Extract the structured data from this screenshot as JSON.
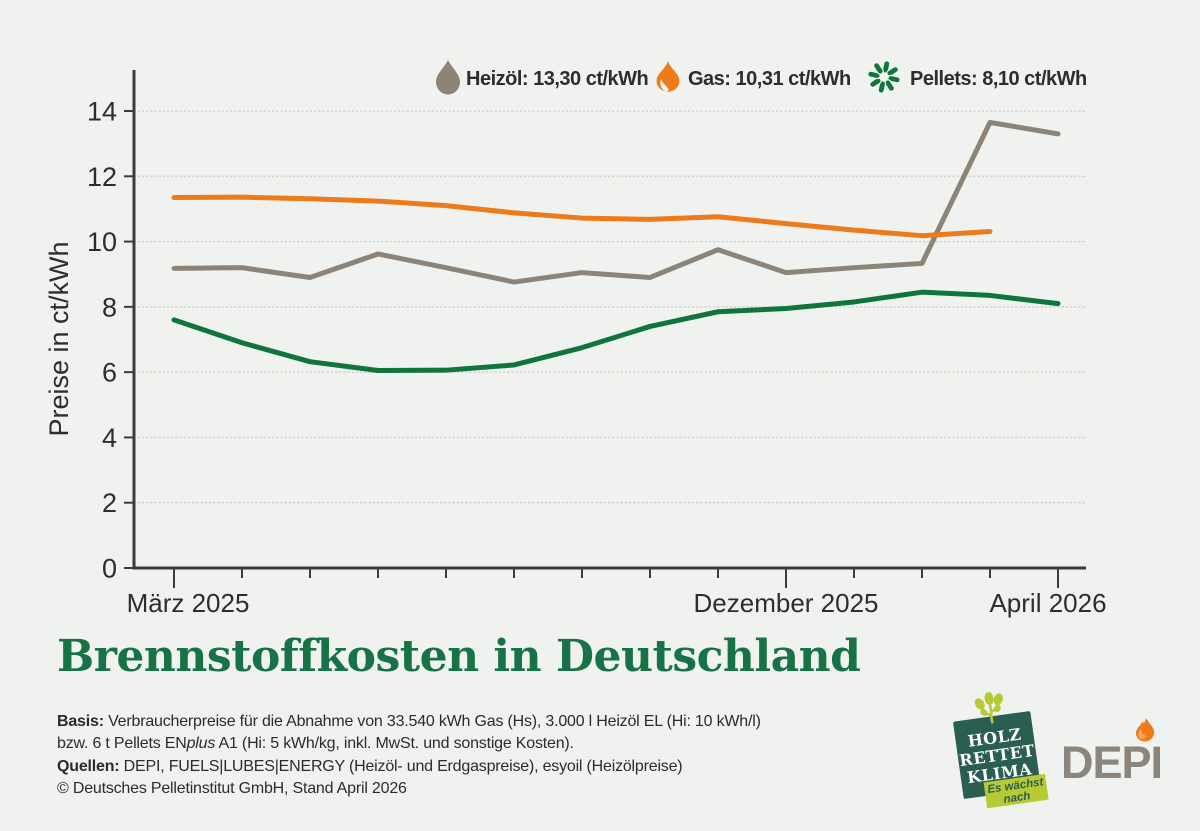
{
  "bg_color": "#f0f2ef",
  "title": {
    "text": "Brennstoffkosten in Deutschland",
    "color": "#177347"
  },
  "chart_data": {
    "type": "line",
    "ylabel": "Preise in ct/kWh",
    "ylim": [
      0,
      14
    ],
    "y_ticks": [
      0,
      2,
      4,
      6,
      8,
      10,
      12,
      14
    ],
    "grid": "dotted-horizontal",
    "legend_position": "top",
    "x_tick_count": 14,
    "x_tick_labels": [
      {
        "index": 0,
        "label": "März 2025",
        "dx": 14
      },
      {
        "index": 9,
        "label": "Dezember 2025",
        "dx": 0
      },
      {
        "index": 13,
        "label": "April 2026",
        "dx": -10
      }
    ],
    "axis_color": "#3b3b3a",
    "grid_color": "#d2d4cf",
    "tick_text_color": "#2e2d2c",
    "series": [
      {
        "name": "Heizöl",
        "icon": "droplet-icon",
        "color": "#8d8478",
        "legend_label": "Heizöl: 13,30 ct/kWh",
        "values": [
          9.18,
          9.2,
          8.9,
          9.62,
          9.2,
          8.76,
          9.05,
          8.9,
          9.75,
          9.05,
          9.2,
          9.33,
          13.65,
          13.3
        ]
      },
      {
        "name": "Gas",
        "icon": "flame-icon",
        "color": "#ed7b1b",
        "legend_label": "Gas: 10,31 ct/kWh",
        "values": [
          11.35,
          11.36,
          11.31,
          11.24,
          11.1,
          10.88,
          10.72,
          10.68,
          10.76,
          10.55,
          10.35,
          10.18,
          10.31,
          null
        ]
      },
      {
        "name": "Pellets",
        "icon": "pellets-icon",
        "color": "#10753c",
        "legend_label": "Pellets: 8,10 ct/kWh",
        "values": [
          7.6,
          6.9,
          6.32,
          6.05,
          6.06,
          6.22,
          6.75,
          7.4,
          7.85,
          7.95,
          8.15,
          8.45,
          8.35,
          8.1
        ]
      }
    ]
  },
  "footer": {
    "basis_label": "Basis:",
    "basis_text": " Verbraucherpreise für die Abnahme von 33.540 kWh Gas (Hs), 3.000 l Heizöl EL (Hi: 10 kWh/l)",
    "line2_pre": "bzw. 6 t Pellets EN",
    "line2_italic": "plus",
    "line2_post": " A1 (Hi: 5 kWh/kg, inkl. MwSt. und sonstige Kosten).",
    "quellen_label": "Quellen:",
    "quellen_text": " DEPI, FUELS|LUBES|ENERGY (Heizöl- und Erdgaspreise), esyoil (Heizölpreise)",
    "copyright": "© Deutsches Pelletinstitut GmbH, Stand April 2026"
  },
  "logos": {
    "holz": {
      "line1": "HOLZ",
      "line2": "RETTET",
      "line3": "KLIMA",
      "banner_line1": "Es wächst",
      "banner_line2": "nach",
      "bg": "#2a5e50",
      "accent": "#b7ca33"
    },
    "depi": {
      "text": "DEPI",
      "color": "#8b857c",
      "flame": "#ee7c1a",
      "flame_inner": "#f5a45b"
    }
  }
}
